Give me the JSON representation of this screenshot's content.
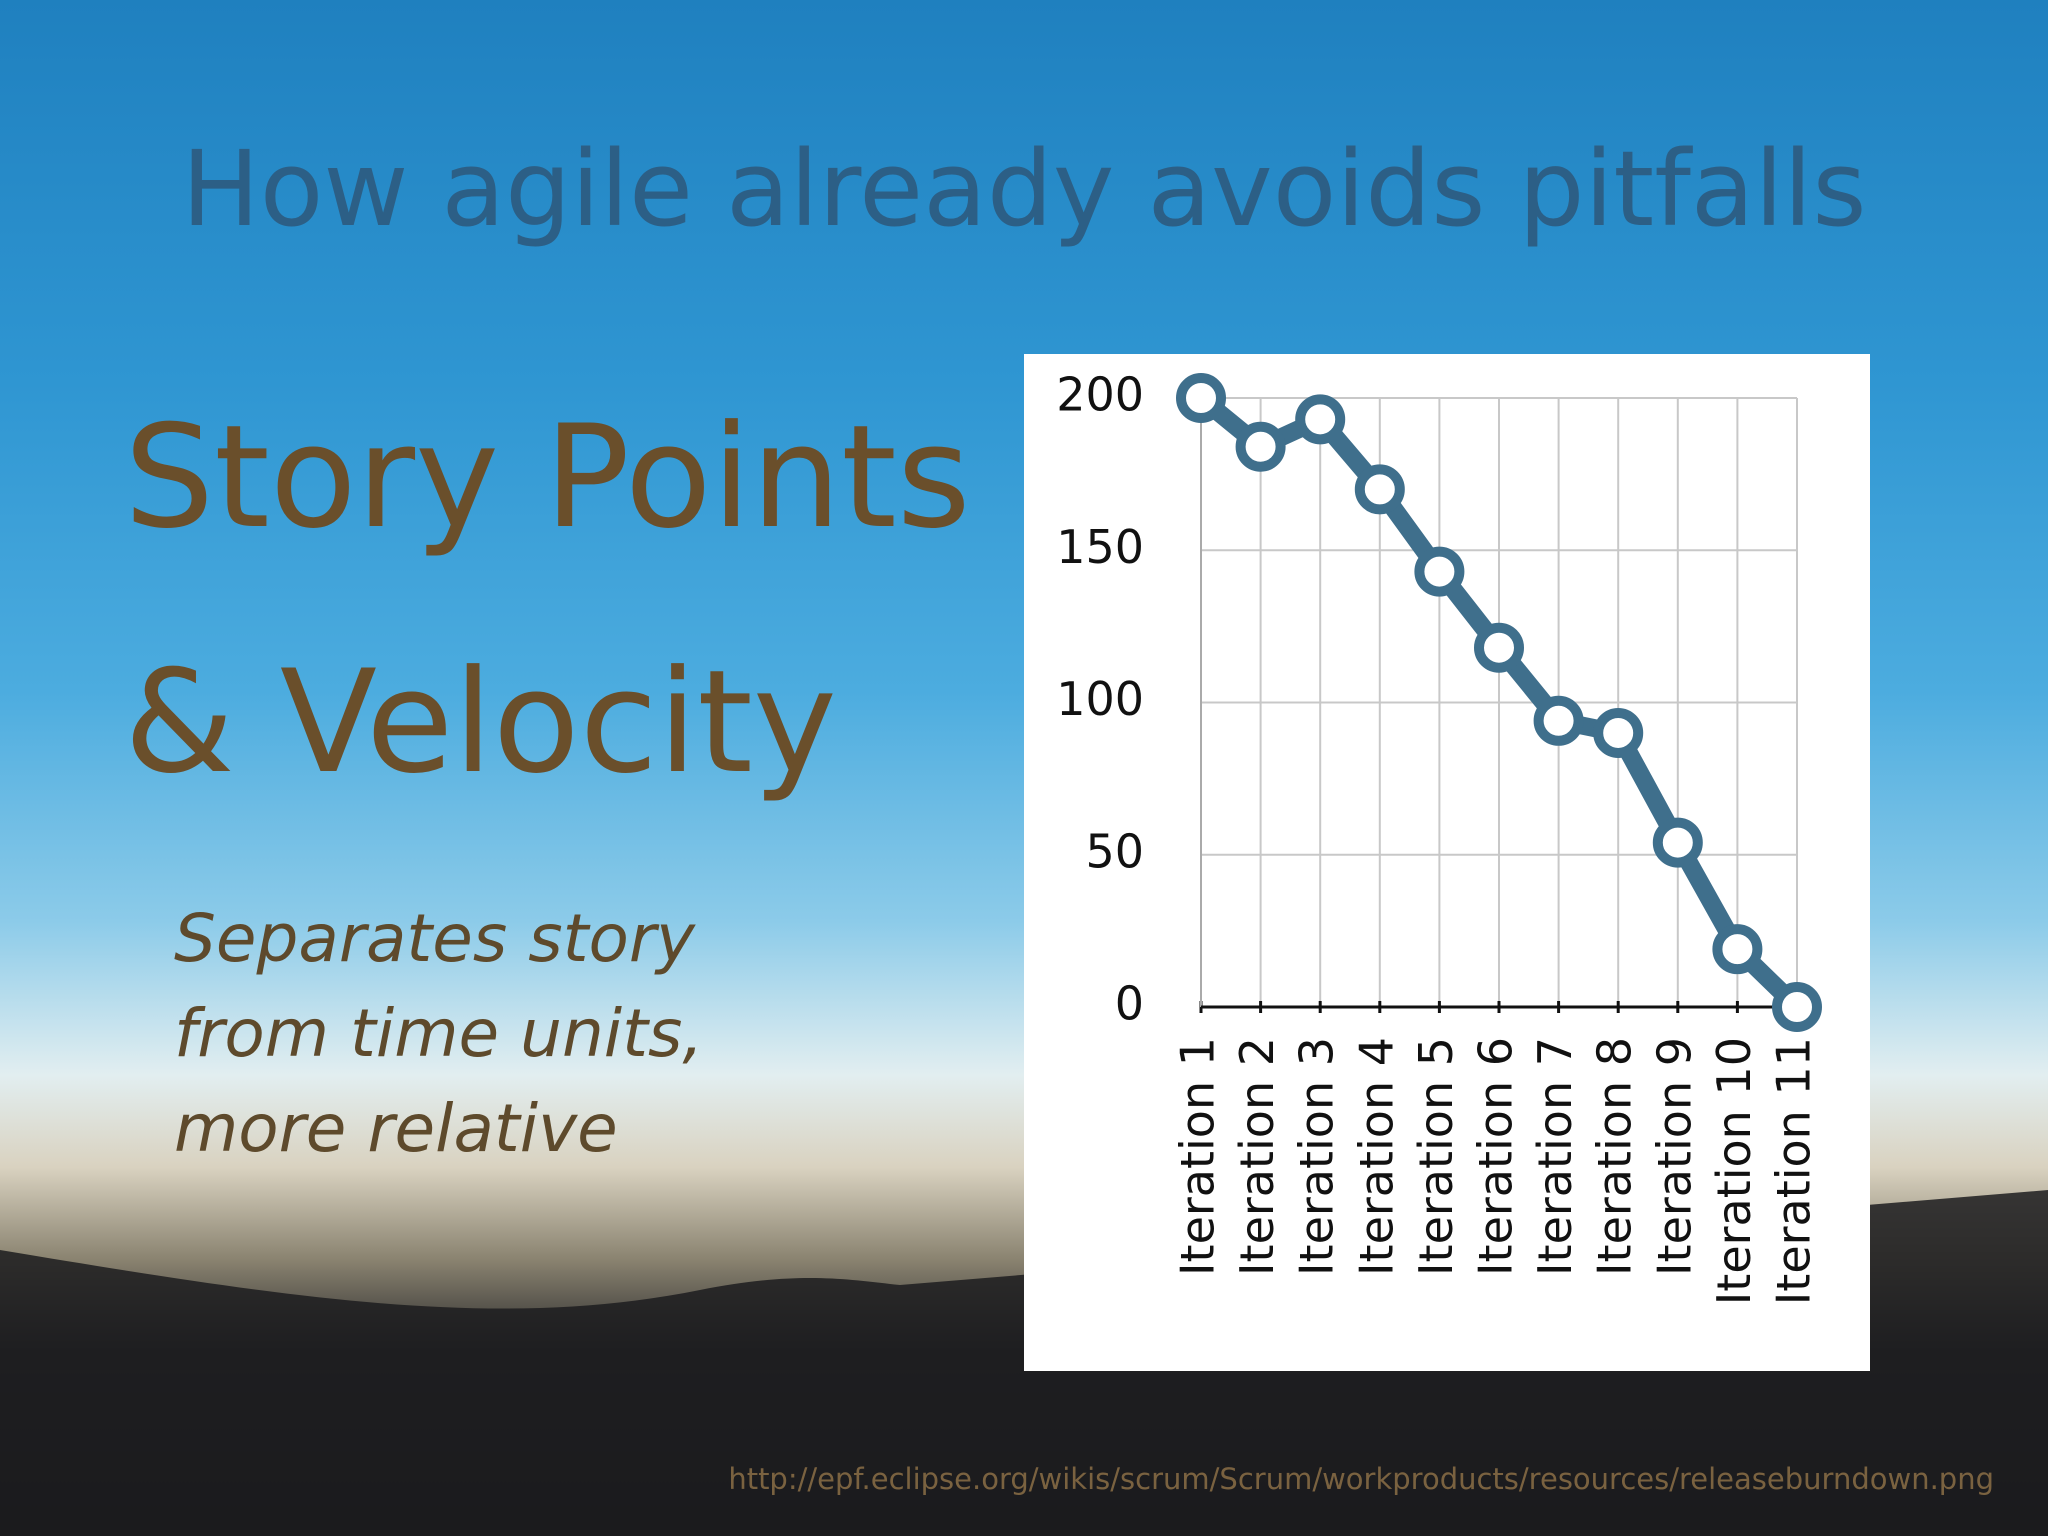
{
  "title": "How agile already avoids pitfalls",
  "heading_lines": [
    "Story Points",
    "& Velocity"
  ],
  "subtext_lines": [
    "Separates story",
    "from time units,",
    "more relative"
  ],
  "source": "http://epf.eclipse.org/wikis/scrum/Scrum/workproducts/resources/releaseburndown.png",
  "chart_data": {
    "type": "line",
    "categories": [
      "Iteration 1",
      "Iteration 2",
      "Iteration 3",
      "Iteration 4",
      "Iteration 5",
      "Iteration 6",
      "Iteration 7",
      "Iteration 8",
      "Iteration 9",
      "Iteration 10",
      "Iteration 11"
    ],
    "values": [
      200,
      184,
      193,
      170,
      143,
      118,
      94,
      90,
      54,
      19,
      0
    ],
    "color": "#3f6f8c",
    "ylim": [
      0,
      200
    ],
    "yticks": [
      0,
      50,
      100,
      150,
      200
    ],
    "grid": true
  }
}
